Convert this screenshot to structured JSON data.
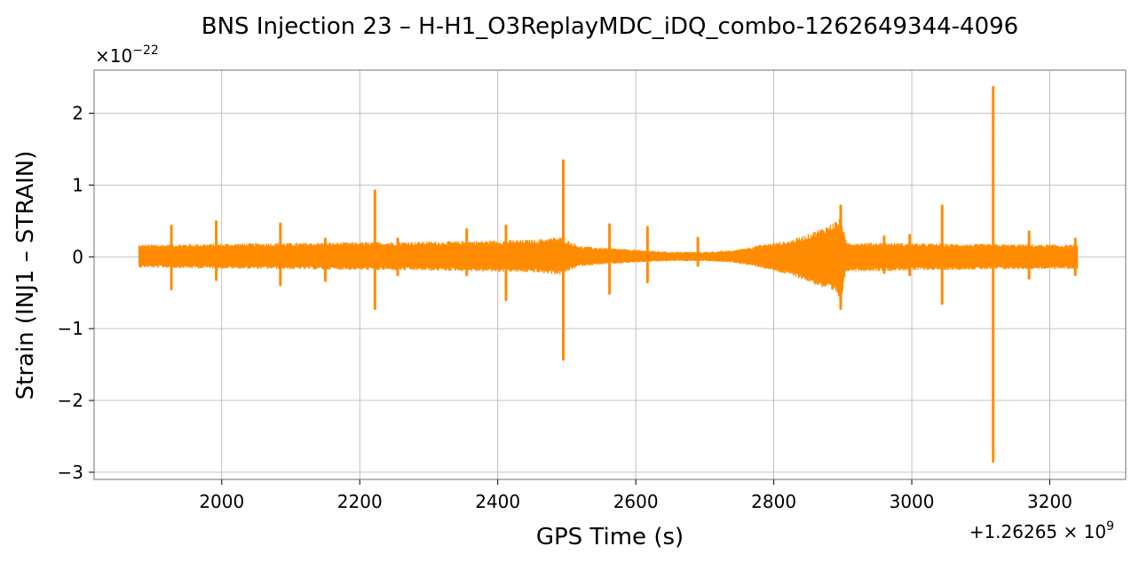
{
  "chart_data": {
    "type": "line",
    "title": "BNS Injection 23 – H-H1_O3ReplayMDC_iDQ_combo-1262649344-4096",
    "xlabel": "GPS Time (s)",
    "ylabel": "Strain (INJ1 – STRAIN)",
    "x_offset_label": "+1.26265 × 10",
    "x_offset_exponent": "9",
    "y_scale_label": "×10",
    "y_scale_exponent": "−22",
    "xlim": [
      1815,
      3310
    ],
    "ylim": [
      -3.1,
      2.6
    ],
    "x_ticks": [
      2000,
      2200,
      2400,
      2600,
      2800,
      3000,
      3200
    ],
    "x_tick_labels": [
      "2000",
      "2200",
      "2400",
      "2600",
      "2800",
      "3000",
      "3200"
    ],
    "y_ticks": [
      -3,
      -2,
      -1,
      0,
      1,
      2
    ],
    "y_tick_labels": [
      "−3",
      "−2",
      "−1",
      "0",
      "1",
      "2"
    ],
    "grid": true,
    "series": [
      {
        "color": "#ff8c00",
        "x_start": 1880,
        "x_end": 3240,
        "envelope": {
          "x": [
            1880,
            1950,
            2050,
            2150,
            2250,
            2350,
            2450,
            2490,
            2520,
            2600,
            2650,
            2700,
            2740,
            2780,
            2820,
            2850,
            2880,
            2898,
            2905,
            2950,
            3000,
            3100,
            3240
          ],
          "upper": [
            0.17,
            0.18,
            0.19,
            0.2,
            0.21,
            0.22,
            0.24,
            0.28,
            0.15,
            0.1,
            0.07,
            0.07,
            0.09,
            0.17,
            0.22,
            0.32,
            0.45,
            0.55,
            0.2,
            0.2,
            0.19,
            0.18,
            0.17
          ],
          "lower": [
            -0.15,
            -0.16,
            -0.17,
            -0.18,
            -0.19,
            -0.2,
            -0.22,
            -0.25,
            -0.13,
            -0.08,
            -0.06,
            -0.06,
            -0.08,
            -0.15,
            -0.25,
            -0.35,
            -0.48,
            -0.6,
            -0.2,
            -0.2,
            -0.19,
            -0.18,
            -0.17
          ]
        },
        "spikes": [
          {
            "x": 1927,
            "max": 0.43,
            "min": -0.45
          },
          {
            "x": 1992,
            "max": 0.49,
            "min": -0.32
          },
          {
            "x": 2085,
            "max": 0.46,
            "min": -0.39
          },
          {
            "x": 2150,
            "max": 0.25,
            "min": -0.33
          },
          {
            "x": 2222,
            "max": 0.92,
            "min": -0.72
          },
          {
            "x": 2255,
            "max": 0.25,
            "min": -0.25
          },
          {
            "x": 2355,
            "max": 0.38,
            "min": -0.25
          },
          {
            "x": 2412,
            "max": 0.43,
            "min": -0.6
          },
          {
            "x": 2495,
            "max": 1.34,
            "min": -1.43
          },
          {
            "x": 2562,
            "max": 0.45,
            "min": -0.51
          },
          {
            "x": 2617,
            "max": 0.41,
            "min": -0.35
          },
          {
            "x": 2690,
            "max": 0.26,
            "min": -0.12
          },
          {
            "x": 2897,
            "max": 0.71,
            "min": -0.72
          },
          {
            "x": 2960,
            "max": 0.28,
            "min": -0.22
          },
          {
            "x": 2997,
            "max": 0.3,
            "min": -0.25
          },
          {
            "x": 3044,
            "max": 0.71,
            "min": -0.65
          },
          {
            "x": 3118,
            "max": 2.36,
            "min": -2.85
          },
          {
            "x": 3170,
            "max": 0.35,
            "min": -0.3
          },
          {
            "x": 3237,
            "max": 0.25,
            "min": -0.25
          }
        ]
      }
    ]
  }
}
